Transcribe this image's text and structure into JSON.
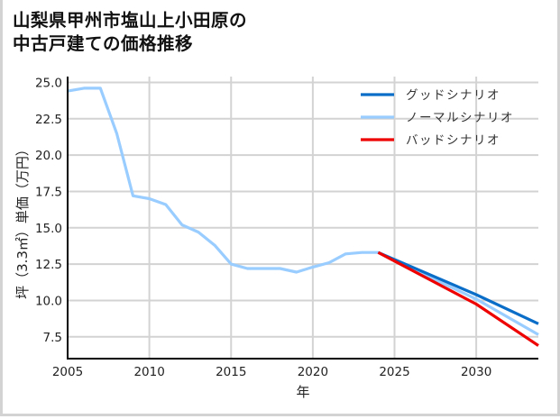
{
  "title_line1": "山梨県甲州市塩山上小田原の",
  "title_line2": "中古戸建ての価格推移",
  "chart_data": {
    "type": "line",
    "title": "山梨県甲州市塩山上小田原の中古戸建ての価格推移",
    "xlabel": "年",
    "ylabel": "坪（3.3㎡）単価（万円）",
    "xlim": [
      2005,
      2033.8
    ],
    "ylim": [
      6.0,
      25.4
    ],
    "xticks": [
      2005,
      2010,
      2015,
      2020,
      2025,
      2030
    ],
    "yticks": [
      7.5,
      10.0,
      12.5,
      15.0,
      17.5,
      20.0,
      22.5,
      25.0
    ],
    "ytick_labels": [
      "7.5",
      "10.0",
      "12.5",
      "15.0",
      "17.5",
      "20.0",
      "22.5",
      "25.0"
    ],
    "grid": true,
    "legend_position": "upper right",
    "series": [
      {
        "name": "グッドシナリオ",
        "color": "#0a6ec8",
        "x": [
          2024,
          2030,
          2033.8
        ],
        "values": [
          13.3,
          10.4,
          8.4
        ]
      },
      {
        "name": "ノーマルシナリオ",
        "color": "#99ccff",
        "x": [
          2005,
          2006,
          2007,
          2008,
          2009,
          2010,
          2011,
          2012,
          2013,
          2014,
          2015,
          2016,
          2017,
          2018,
          2019,
          2020,
          2021,
          2022,
          2023,
          2024,
          2030,
          2033.8
        ],
        "values": [
          24.4,
          24.6,
          24.6,
          21.5,
          17.2,
          17.0,
          16.6,
          15.2,
          14.7,
          13.8,
          12.5,
          12.2,
          12.2,
          12.2,
          11.95,
          12.3,
          12.6,
          13.2,
          13.3,
          13.3,
          10.1,
          7.65
        ]
      },
      {
        "name": "バッドシナリオ",
        "color": "#ee0000",
        "x": [
          2024,
          2030,
          2033.8
        ],
        "values": [
          13.3,
          9.75,
          6.9
        ]
      }
    ]
  }
}
